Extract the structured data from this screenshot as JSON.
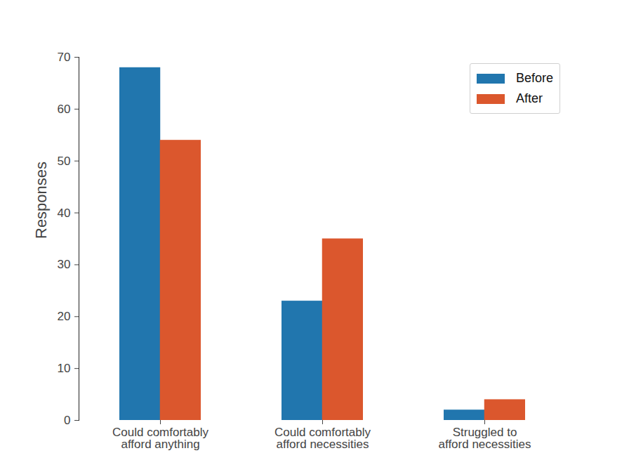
{
  "chart_data": {
    "type": "bar",
    "categories": [
      "Could comfortably afford anything",
      "Could comfortably afford necessities",
      "Struggled to afford necessities"
    ],
    "series": [
      {
        "name": "Before",
        "color": "#2176ae",
        "values": [
          68,
          23,
          2
        ]
      },
      {
        "name": "After",
        "color": "#db572d",
        "values": [
          54,
          35,
          4
        ]
      }
    ],
    "y_label": "Responses",
    "ylim": [
      0,
      70
    ],
    "yticks": [
      0,
      10,
      20,
      30,
      40,
      50,
      60,
      70
    ],
    "grid": false,
    "legend": "upper right"
  }
}
